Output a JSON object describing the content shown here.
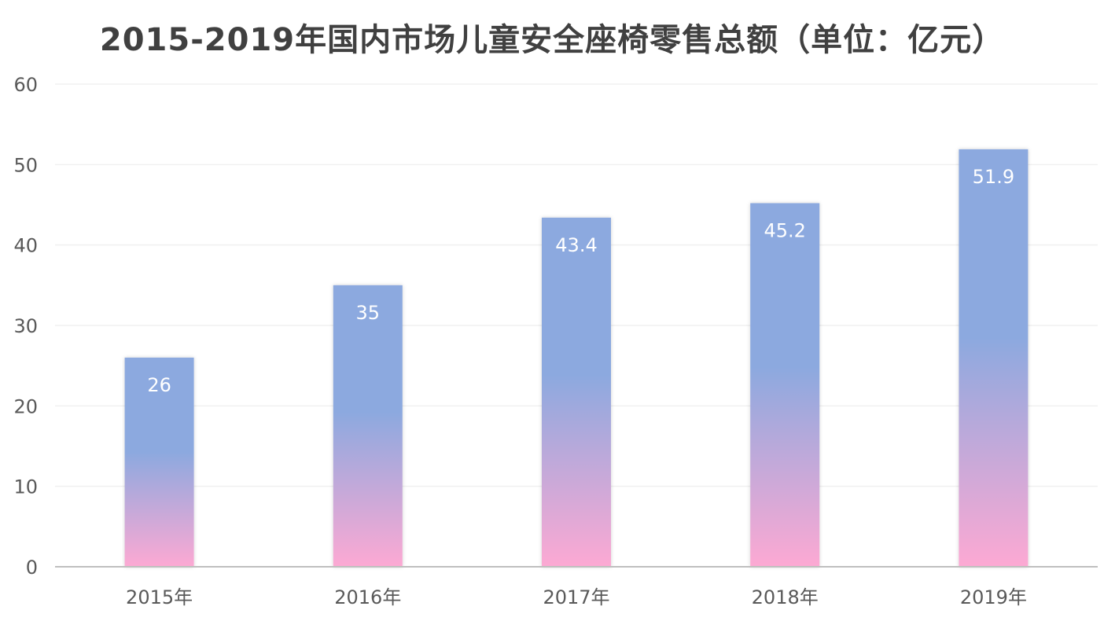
{
  "chart_data": {
    "type": "bar",
    "title": "2015-2019年国内市场儿童安全座椅零售总额（单位：亿元）",
    "categories": [
      "2015年",
      "2016年",
      "2017年",
      "2018年",
      "2019年"
    ],
    "values": [
      26,
      35,
      43.4,
      45.2,
      51.9
    ],
    "data_labels": [
      "26",
      "35",
      "43.4",
      "45.2",
      "51.9"
    ],
    "xlabel": "",
    "ylabel": "",
    "ylim": [
      0,
      60
    ],
    "yticks": [
      0,
      10,
      20,
      30,
      40,
      50,
      60
    ],
    "grid": true,
    "legend": "none",
    "colors": {
      "bar_top": "#8CA9DF",
      "bar_bottom": "#FDA9D3",
      "gridline": "#F0F0F0",
      "axis": "#BFBFBF",
      "title": "#404040",
      "tick_text": "#595959",
      "data_label": "#FFFFFF"
    }
  }
}
